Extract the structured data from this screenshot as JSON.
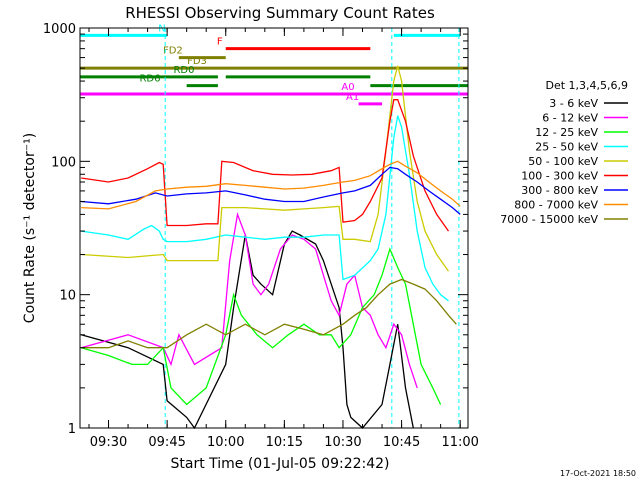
{
  "chart_data": {
    "type": "line",
    "title": "RHESSI Observing Summary Count Rates",
    "xlabel": "Start Time (01-Jul-05 09:22:42)",
    "ylabel": "Count Rate (s⁻¹ detector⁻¹)",
    "xlim": [
      "09:22:42",
      "11:02:00"
    ],
    "ylim": [
      1,
      1000
    ],
    "yscale": "log",
    "x_ticks": [
      "09:30",
      "09:45",
      "10:00",
      "10:15",
      "10:30",
      "10:45",
      "11:00"
    ],
    "y_ticks": [
      "1",
      "10",
      "100",
      "1000"
    ],
    "legend": {
      "title": "Det 1,3,4,5,6,9",
      "placement": "right"
    },
    "series": [
      {
        "name": "3 - 6 keV",
        "color": "#000000",
        "points": [
          [
            "09:23",
            5
          ],
          [
            "09:35",
            4
          ],
          [
            "09:44",
            3
          ],
          [
            "09:45",
            1.6
          ],
          [
            "09:50",
            1.2
          ],
          [
            "09:52",
            1
          ],
          [
            "10:00",
            3
          ],
          [
            "10:02",
            8
          ],
          [
            "10:05",
            28
          ],
          [
            "10:07",
            14
          ],
          [
            "10:09",
            12
          ],
          [
            "10:12",
            10
          ],
          [
            "10:15",
            24
          ],
          [
            "10:17",
            30
          ],
          [
            "10:19",
            28
          ],
          [
            "10:23",
            24
          ],
          [
            "10:25",
            18
          ],
          [
            "10:27",
            12
          ],
          [
            "10:29",
            8
          ],
          [
            "10:30",
            4
          ],
          [
            "10:31",
            1.5
          ],
          [
            "10:32",
            1.2
          ],
          [
            "10:35",
            1
          ],
          [
            "10:40",
            1.5
          ],
          [
            "10:42",
            3
          ],
          [
            "10:44",
            6
          ],
          [
            "10:46",
            2
          ],
          [
            "10:48",
            1
          ]
        ]
      },
      {
        "name": "6 - 12 keV",
        "color": "#ff00ff",
        "points": [
          [
            "09:23",
            4
          ],
          [
            "09:35",
            5
          ],
          [
            "09:44",
            4
          ],
          [
            "09:46",
            3
          ],
          [
            "09:48",
            5
          ],
          [
            "09:52",
            3
          ],
          [
            "09:59",
            4
          ],
          [
            "10:01",
            18
          ],
          [
            "10:03",
            40
          ],
          [
            "10:05",
            28
          ],
          [
            "10:07",
            12
          ],
          [
            "10:09",
            10
          ],
          [
            "10:11",
            12
          ],
          [
            "10:14",
            22
          ],
          [
            "10:17",
            28
          ],
          [
            "10:20",
            26
          ],
          [
            "10:23",
            22
          ],
          [
            "10:25",
            14
          ],
          [
            "10:27",
            9
          ],
          [
            "10:29",
            7
          ],
          [
            "10:31",
            12
          ],
          [
            "10:33",
            14
          ],
          [
            "10:35",
            8
          ],
          [
            "10:37",
            7
          ],
          [
            "10:39",
            5
          ],
          [
            "10:41",
            4
          ],
          [
            "10:43",
            6
          ],
          [
            "10:45",
            5
          ],
          [
            "10:47",
            3
          ],
          [
            "10:49",
            2
          ]
        ]
      },
      {
        "name": "12 - 25 keV",
        "color": "#00ff00",
        "points": [
          [
            "09:23",
            4
          ],
          [
            "09:30",
            3.5
          ],
          [
            "09:36",
            3
          ],
          [
            "09:40",
            3
          ],
          [
            "09:44",
            4
          ],
          [
            "09:46",
            2
          ],
          [
            "09:50",
            1.5
          ],
          [
            "09:55",
            2
          ],
          [
            "10:00",
            5
          ],
          [
            "10:02",
            10
          ],
          [
            "10:04",
            7
          ],
          [
            "10:08",
            5
          ],
          [
            "10:12",
            4
          ],
          [
            "10:16",
            5
          ],
          [
            "10:20",
            6
          ],
          [
            "10:24",
            5
          ],
          [
            "10:27",
            5
          ],
          [
            "10:29",
            4
          ],
          [
            "10:32",
            5
          ],
          [
            "10:35",
            8
          ],
          [
            "10:38",
            10
          ],
          [
            "10:40",
            14
          ],
          [
            "10:42",
            22
          ],
          [
            "10:44",
            16
          ],
          [
            "10:46",
            12
          ],
          [
            "10:48",
            6
          ],
          [
            "10:50",
            3
          ],
          [
            "10:53",
            2
          ],
          [
            "10:55",
            1.5
          ]
        ]
      },
      {
        "name": "25 - 50 keV",
        "color": "#00ffff",
        "points": [
          [
            "09:23",
            30
          ],
          [
            "09:30",
            28
          ],
          [
            "09:35",
            26
          ],
          [
            "09:39",
            31
          ],
          [
            "09:41",
            33
          ],
          [
            "09:43",
            30
          ],
          [
            "09:44",
            26
          ],
          [
            "09:45",
            25
          ],
          [
            "09:50",
            25
          ],
          [
            "09:55",
            26
          ],
          [
            "10:00",
            28
          ],
          [
            "10:05",
            27
          ],
          [
            "10:10",
            26
          ],
          [
            "10:15",
            27
          ],
          [
            "10:20",
            27
          ],
          [
            "10:25",
            28
          ],
          [
            "10:29",
            28
          ],
          [
            "10:30",
            13
          ],
          [
            "10:33",
            14
          ],
          [
            "10:37",
            18
          ],
          [
            "10:39",
            22
          ],
          [
            "10:41",
            40
          ],
          [
            "10:43",
            150
          ],
          [
            "10:44",
            220
          ],
          [
            "10:45",
            180
          ],
          [
            "10:47",
            80
          ],
          [
            "10:49",
            30
          ],
          [
            "10:51",
            16
          ],
          [
            "10:53",
            12
          ],
          [
            "10:55",
            10
          ],
          [
            "10:57",
            9
          ]
        ]
      },
      {
        "name": "50 - 100 keV",
        "color": "#cccc00",
        "points": [
          [
            "09:23",
            20
          ],
          [
            "09:35",
            19
          ],
          [
            "09:44",
            20
          ],
          [
            "09:45",
            18
          ],
          [
            "09:50",
            18
          ],
          [
            "09:55",
            18
          ],
          [
            "09:58",
            18
          ],
          [
            "09:59",
            45
          ],
          [
            "10:05",
            45
          ],
          [
            "10:10",
            44
          ],
          [
            "10:15",
            43
          ],
          [
            "10:20",
            44
          ],
          [
            "10:25",
            45
          ],
          [
            "10:29",
            46
          ],
          [
            "10:30",
            26
          ],
          [
            "10:33",
            26
          ],
          [
            "10:37",
            25
          ],
          [
            "10:39",
            40
          ],
          [
            "10:41",
            120
          ],
          [
            "10:43",
            400
          ],
          [
            "10:44",
            520
          ],
          [
            "10:45",
            400
          ],
          [
            "10:47",
            120
          ],
          [
            "10:49",
            50
          ],
          [
            "10:51",
            30
          ],
          [
            "10:54",
            20
          ],
          [
            "10:57",
            15
          ]
        ]
      },
      {
        "name": "100 - 300 keV",
        "color": "#ff0000",
        "points": [
          [
            "09:23",
            75
          ],
          [
            "09:30",
            70
          ],
          [
            "09:35",
            75
          ],
          [
            "09:40",
            88
          ],
          [
            "09:43",
            98
          ],
          [
            "09:44",
            95
          ],
          [
            "09:45",
            33
          ],
          [
            "09:50",
            33
          ],
          [
            "09:55",
            34
          ],
          [
            "09:58",
            34
          ],
          [
            "09:59",
            100
          ],
          [
            "10:02",
            98
          ],
          [
            "10:07",
            85
          ],
          [
            "10:12",
            80
          ],
          [
            "10:17",
            79
          ],
          [
            "10:22",
            80
          ],
          [
            "10:27",
            85
          ],
          [
            "10:29",
            90
          ],
          [
            "10:30",
            35
          ],
          [
            "10:33",
            36
          ],
          [
            "10:35",
            40
          ],
          [
            "10:37",
            50
          ],
          [
            "10:40",
            75
          ],
          [
            "10:42",
            200
          ],
          [
            "10:43",
            290
          ],
          [
            "10:44",
            290
          ],
          [
            "10:46",
            200
          ],
          [
            "10:48",
            110
          ],
          [
            "10:51",
            60
          ],
          [
            "10:54",
            40
          ],
          [
            "10:57",
            30
          ]
        ]
      },
      {
        "name": "300 - 800 keV",
        "color": "#0000ff",
        "points": [
          [
            "09:23",
            50
          ],
          [
            "09:30",
            48
          ],
          [
            "09:37",
            52
          ],
          [
            "09:42",
            58
          ],
          [
            "09:45",
            55
          ],
          [
            "09:50",
            57
          ],
          [
            "09:55",
            58
          ],
          [
            "10:00",
            60
          ],
          [
            "10:05",
            56
          ],
          [
            "10:10",
            52
          ],
          [
            "10:15",
            50
          ],
          [
            "10:20",
            50
          ],
          [
            "10:25",
            54
          ],
          [
            "10:30",
            58
          ],
          [
            "10:33",
            60
          ],
          [
            "10:37",
            66
          ],
          [
            "10:40",
            80
          ],
          [
            "10:42",
            90
          ],
          [
            "10:44",
            88
          ],
          [
            "10:46",
            80
          ],
          [
            "10:49",
            70
          ],
          [
            "10:52",
            60
          ],
          [
            "10:55",
            52
          ],
          [
            "10:58",
            45
          ],
          [
            "11:00",
            40
          ]
        ]
      },
      {
        "name": "800 - 7000 keV",
        "color": "#ff8c00",
        "points": [
          [
            "09:23",
            45
          ],
          [
            "09:30",
            44
          ],
          [
            "09:37",
            50
          ],
          [
            "09:42",
            60
          ],
          [
            "09:45",
            62
          ],
          [
            "09:50",
            64
          ],
          [
            "09:55",
            65
          ],
          [
            "10:00",
            68
          ],
          [
            "10:05",
            66
          ],
          [
            "10:10",
            64
          ],
          [
            "10:15",
            62
          ],
          [
            "10:20",
            63
          ],
          [
            "10:25",
            66
          ],
          [
            "10:30",
            70
          ],
          [
            "10:33",
            72
          ],
          [
            "10:37",
            78
          ],
          [
            "10:40",
            88
          ],
          [
            "10:42",
            95
          ],
          [
            "10:44",
            100
          ],
          [
            "10:46",
            92
          ],
          [
            "10:49",
            82
          ],
          [
            "10:52",
            70
          ],
          [
            "10:55",
            60
          ],
          [
            "10:58",
            52
          ],
          [
            "11:00",
            46
          ]
        ]
      },
      {
        "name": "7000 - 15000 keV",
        "color": "#808000",
        "points": [
          [
            "09:23",
            4
          ],
          [
            "09:30",
            4
          ],
          [
            "09:35",
            4.5
          ],
          [
            "09:40",
            4
          ],
          [
            "09:45",
            4
          ],
          [
            "09:50",
            5
          ],
          [
            "09:55",
            6
          ],
          [
            "10:00",
            5
          ],
          [
            "10:05",
            6
          ],
          [
            "10:10",
            5
          ],
          [
            "10:15",
            6
          ],
          [
            "10:20",
            5.5
          ],
          [
            "10:25",
            5
          ],
          [
            "10:30",
            6
          ],
          [
            "10:33",
            7
          ],
          [
            "10:36",
            8
          ],
          [
            "10:39",
            10
          ],
          [
            "10:42",
            12
          ],
          [
            "10:45",
            13
          ],
          [
            "10:48",
            12
          ],
          [
            "10:51",
            11
          ],
          [
            "10:54",
            9
          ],
          [
            "10:57",
            7
          ],
          [
            "10:59",
            6
          ]
        ]
      }
    ],
    "flags": [
      {
        "label": "N",
        "color": "#00ffff",
        "segments": [
          [
            "09:22:42",
            "09:45"
          ],
          [
            "10:43",
            "11:00"
          ]
        ],
        "level": 880
      },
      {
        "label": "F",
        "color": "#ff0000",
        "segments": [
          [
            "10:00",
            "10:37"
          ]
        ],
        "level": 700
      },
      {
        "label": "FD2",
        "color": "#808000",
        "segments": [
          [
            "09:48",
            "10:00"
          ]
        ],
        "level": 600
      },
      {
        "label": "FD3",
        "color": "#808000",
        "segments": [
          [
            "09:22:42",
            "11:02"
          ]
        ],
        "level": 500
      },
      {
        "label": "RD0",
        "color": "#008000",
        "segments": [
          [
            "09:22:42",
            "09:58"
          ],
          [
            "10:00",
            "10:37"
          ]
        ],
        "level": 430
      },
      {
        "label": "RD6",
        "color": "#008000",
        "segments": [
          [
            "09:50",
            "09:58"
          ],
          [
            "10:37",
            "11:02"
          ]
        ],
        "level": 370
      },
      {
        "label": "A0",
        "color": "#ff00ff",
        "segments": [
          [
            "09:22:42",
            "11:02"
          ]
        ],
        "level": 320
      },
      {
        "label": "A1",
        "color": "#ff00ff",
        "segments": [
          [
            "10:34",
            "10:40"
          ]
        ],
        "level": 270
      }
    ],
    "time_markers": [
      {
        "time": "09:44:30",
        "color": "#00ffff"
      },
      {
        "time": "10:42:30",
        "color": "#00ffff"
      },
      {
        "time": "10:59:40",
        "color": "#00ffff"
      }
    ],
    "grid": false
  },
  "stamp": "17-Oct-2021 18:50"
}
